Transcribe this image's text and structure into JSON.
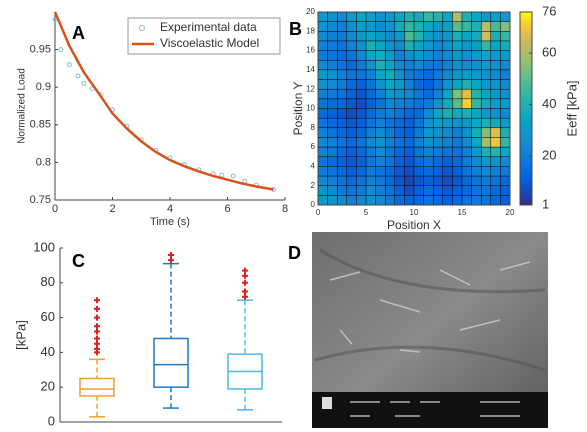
{
  "chart_data": [
    {
      "type": "line",
      "panel_label": "A",
      "xlabel": "Time (s)",
      "ylabel": "Normalized Load",
      "xlim": [
        0,
        8
      ],
      "xticks": [
        0,
        2,
        4,
        6,
        8
      ],
      "ylim": [
        0.75,
        1.0
      ],
      "yticks": [
        0.75,
        0.8,
        0.85,
        0.9,
        0.95
      ],
      "legend": "upper right",
      "series": [
        {
          "name": "Experimental data",
          "color": "#8db8e2",
          "style": "marker",
          "x": [
            0,
            0.2,
            0.5,
            0.8,
            1,
            1.3,
            1.6,
            2,
            2.5,
            3,
            3.5,
            4,
            4.5,
            5,
            5.5,
            5.8,
            6.2,
            6.6,
            7,
            7.6
          ],
          "values": [
            0.99,
            0.95,
            0.93,
            0.915,
            0.905,
            0.898,
            0.89,
            0.87,
            0.848,
            0.83,
            0.816,
            0.806,
            0.797,
            0.79,
            0.785,
            0.783,
            0.782,
            0.775,
            0.77,
            0.764
          ]
        },
        {
          "name": "Viscoelastic Model",
          "color": "#d95319",
          "style": "line",
          "x": [
            0,
            0.5,
            1,
            1.5,
            2,
            2.5,
            3,
            3.5,
            4,
            4.5,
            5,
            5.5,
            6,
            6.5,
            7,
            7.6
          ],
          "values": [
            1.0,
            0.955,
            0.92,
            0.893,
            0.865,
            0.845,
            0.828,
            0.814,
            0.803,
            0.795,
            0.788,
            0.782,
            0.777,
            0.772,
            0.768,
            0.764
          ]
        }
      ]
    },
    {
      "type": "heatmap",
      "panel_label": "B",
      "xlabel": "Position X",
      "ylabel": "Position Y",
      "colorbar_label": "Eeff [kPa]",
      "xlim": [
        0,
        20
      ],
      "xticks": [
        0,
        5,
        10,
        15,
        20
      ],
      "ylim": [
        0,
        20
      ],
      "yticks": [
        0,
        2,
        4,
        6,
        8,
        10,
        12,
        14,
        16,
        18,
        20
      ],
      "clim": [
        1,
        76
      ],
      "cticks": [
        1,
        20,
        40,
        60,
        76
      ],
      "colormap": "parula",
      "z": [
        [
          30,
          28,
          25,
          30,
          35,
          32,
          28,
          30,
          35,
          40,
          38,
          45,
          42,
          35,
          60,
          40,
          35,
          30,
          33,
          30
        ],
        [
          28,
          25,
          22,
          28,
          32,
          30,
          26,
          28,
          38,
          45,
          40,
          35,
          30,
          33,
          50,
          45,
          40,
          62,
          48,
          55
        ],
        [
          25,
          22,
          20,
          25,
          30,
          35,
          30,
          25,
          30,
          48,
          42,
          33,
          28,
          30,
          40,
          35,
          38,
          65,
          40,
          45
        ],
        [
          22,
          20,
          18,
          22,
          28,
          40,
          35,
          28,
          25,
          40,
          35,
          30,
          25,
          28,
          35,
          30,
          32,
          45,
          35,
          38
        ],
        [
          20,
          18,
          15,
          18,
          25,
          35,
          38,
          30,
          22,
          28,
          30,
          25,
          22,
          25,
          30,
          28,
          30,
          35,
          30,
          30
        ],
        [
          25,
          22,
          18,
          15,
          20,
          28,
          40,
          35,
          25,
          22,
          25,
          20,
          18,
          22,
          28,
          25,
          28,
          30,
          28,
          25
        ],
        [
          30,
          28,
          22,
          18,
          18,
          22,
          35,
          38,
          28,
          20,
          18,
          15,
          20,
          25,
          30,
          32,
          30,
          28,
          25,
          22
        ],
        [
          28,
          25,
          20,
          15,
          12,
          18,
          28,
          35,
          30,
          22,
          15,
          12,
          18,
          28,
          35,
          40,
          35,
          30,
          28,
          25
        ],
        [
          22,
          20,
          18,
          12,
          10,
          15,
          22,
          30,
          28,
          25,
          20,
          15,
          22,
          35,
          55,
          68,
          42,
          35,
          30,
          28
        ],
        [
          18,
          15,
          14,
          10,
          8,
          12,
          18,
          25,
          22,
          20,
          18,
          20,
          28,
          38,
          50,
          72,
          45,
          38,
          32,
          30
        ],
        [
          15,
          12,
          10,
          8,
          10,
          15,
          20,
          22,
          18,
          15,
          15,
          25,
          35,
          40,
          38,
          40,
          35,
          30,
          28,
          25
        ],
        [
          18,
          15,
          12,
          10,
          12,
          18,
          22,
          18,
          15,
          12,
          18,
          28,
          32,
          30,
          28,
          30,
          35,
          40,
          38,
          30
        ],
        [
          22,
          18,
          15,
          12,
          15,
          22,
          25,
          20,
          15,
          12,
          20,
          30,
          28,
          25,
          22,
          28,
          38,
          55,
          68,
          40
        ],
        [
          25,
          22,
          18,
          15,
          18,
          25,
          28,
          22,
          18,
          15,
          22,
          28,
          25,
          22,
          20,
          25,
          35,
          60,
          70,
          45
        ],
        [
          22,
          20,
          15,
          12,
          15,
          20,
          25,
          20,
          15,
          12,
          18,
          22,
          20,
          18,
          18,
          22,
          30,
          40,
          42,
          35
        ],
        [
          18,
          15,
          12,
          10,
          12,
          18,
          22,
          18,
          12,
          10,
          15,
          18,
          15,
          12,
          15,
          20,
          25,
          30,
          28,
          25
        ],
        [
          20,
          18,
          15,
          12,
          15,
          20,
          18,
          15,
          10,
          8,
          12,
          15,
          12,
          10,
          12,
          18,
          22,
          25,
          22,
          20
        ],
        [
          25,
          22,
          18,
          15,
          18,
          22,
          20,
          15,
          10,
          6,
          10,
          12,
          10,
          8,
          10,
          15,
          18,
          20,
          18,
          15
        ],
        [
          28,
          25,
          20,
          18,
          20,
          25,
          22,
          18,
          12,
          8,
          12,
          15,
          12,
          10,
          12,
          15,
          18,
          18,
          15,
          12
        ],
        [
          30,
          28,
          25,
          22,
          25,
          28,
          25,
          20,
          15,
          12,
          15,
          18,
          15,
          12,
          15,
          18,
          20,
          18,
          15,
          12
        ]
      ]
    },
    {
      "type": "box",
      "panel_label": "C",
      "ylabel": "[kPa]",
      "ylim": [
        0,
        100
      ],
      "yticks": [
        0,
        20,
        40,
        60,
        80,
        100
      ],
      "categories": [
        null,
        null,
        null
      ],
      "outlier_color": "#e02020",
      "boxes": [
        {
          "color": "#f0a030",
          "low": 3,
          "q1": 15,
          "median": 19,
          "q3": 25,
          "high": 36,
          "outliers": [
            40,
            42,
            45,
            48,
            52,
            55,
            60,
            65,
            70
          ]
        },
        {
          "color": "#1f78c8",
          "low": 8,
          "q1": 20,
          "median": 33,
          "q3": 48,
          "high": 91,
          "outliers": [
            93,
            96
          ]
        },
        {
          "color": "#4fb8e8",
          "low": 7,
          "q1": 19,
          "median": 29,
          "q3": 39,
          "high": 70,
          "outliers": [
            72,
            75,
            80,
            84,
            87
          ]
        }
      ]
    },
    {
      "type": "image",
      "panel_label": "D"
    }
  ]
}
